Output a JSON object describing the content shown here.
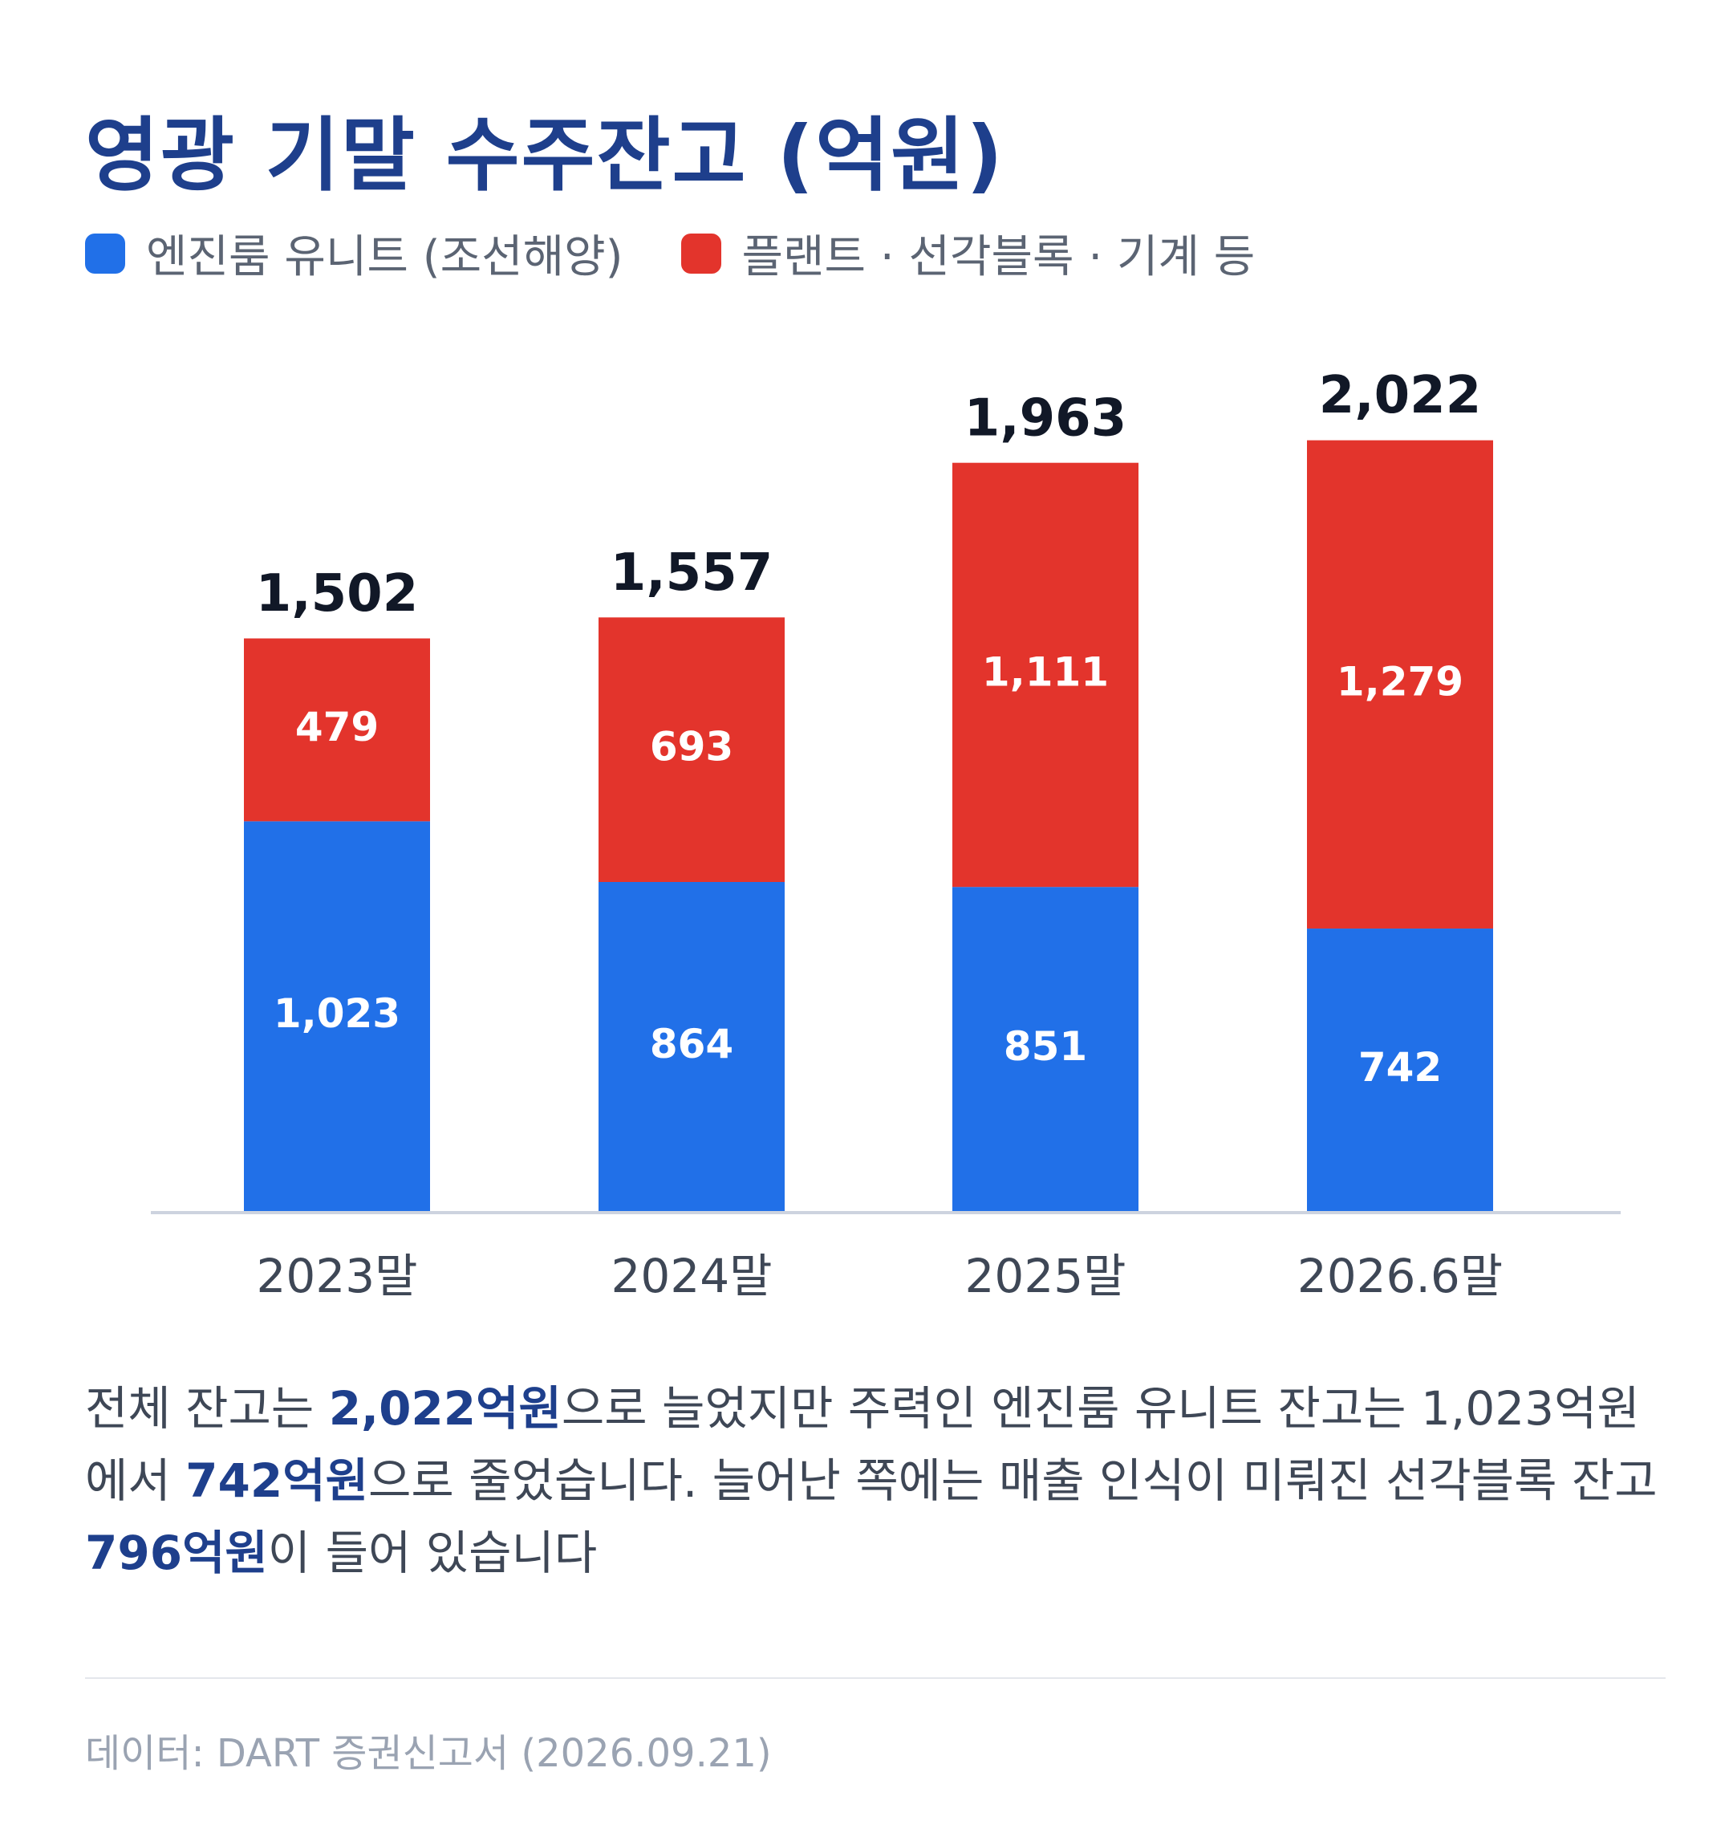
{
  "chart_data": {
    "type": "bar",
    "stacked": true,
    "title": "영광 기말 수주잔고 (억원)",
    "categories": [
      "2023말",
      "2024말",
      "2025말",
      "2026.6말"
    ],
    "series": [
      {
        "name": "엔진룸 유니트 (조선해양)",
        "values": [
          1023,
          864,
          851,
          742
        ],
        "color": "#2170e8"
      },
      {
        "name": "플랜트 · 선각블록 · 기계 등",
        "values": [
          479,
          693,
          1111,
          1279
        ],
        "color": "#e3342c"
      }
    ],
    "totals": [
      1502,
      1557,
      1963,
      2022
    ],
    "value_labels": {
      "series": [
        [
          "1,023",
          "864",
          "851",
          "742"
        ],
        [
          "479",
          "693",
          "1,111",
          "1,279"
        ]
      ],
      "totals": [
        "1,502",
        "1,557",
        "1,963",
        "2,022"
      ]
    },
    "ylim": [
      0,
      2100
    ],
    "grid": false,
    "legend": "top-left"
  },
  "note": {
    "p1": "전체 잔고는 ",
    "h1": "2,022억원",
    "p2": "으로 늘었지만 주력인 엔진룸 유니트 잔고는 1,023억원에서 ",
    "h2": "742억원",
    "p3": "으로 줄었습니다. 늘어난 쪽에는 매출 인식이 미뤄진 선각블록 잔고 ",
    "h3": "796억원",
    "p4": "이 들어 있습니다"
  },
  "source": "데이터: DART 증권신고서 (2026.09.21)",
  "colors": {
    "title": "#1e3f8c",
    "axis": "#cdd3df",
    "text": "#3e4756"
  }
}
